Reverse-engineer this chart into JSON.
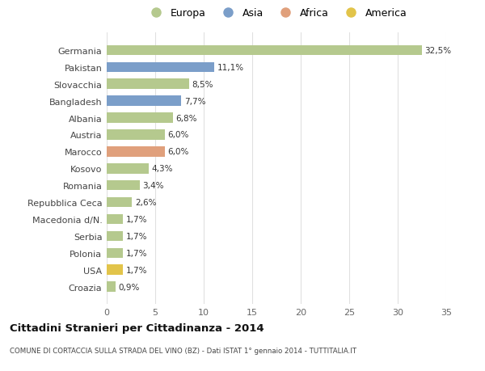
{
  "categories": [
    "Croazia",
    "USA",
    "Polonia",
    "Serbia",
    "Macedonia d/N.",
    "Repubblica Ceca",
    "Romania",
    "Kosovo",
    "Marocco",
    "Austria",
    "Albania",
    "Bangladesh",
    "Slovacchia",
    "Pakistan",
    "Germania"
  ],
  "values": [
    0.9,
    1.7,
    1.7,
    1.7,
    1.7,
    2.6,
    3.4,
    4.3,
    6.0,
    6.0,
    6.8,
    7.7,
    8.5,
    11.1,
    32.5
  ],
  "labels": [
    "0,9%",
    "1,7%",
    "1,7%",
    "1,7%",
    "1,7%",
    "2,6%",
    "3,4%",
    "4,3%",
    "6,0%",
    "6,0%",
    "6,8%",
    "7,7%",
    "8,5%",
    "11,1%",
    "32,5%"
  ],
  "colors": [
    "#b5c98e",
    "#e2c44a",
    "#b5c98e",
    "#b5c98e",
    "#b5c98e",
    "#b5c98e",
    "#b5c98e",
    "#b5c98e",
    "#e0a07c",
    "#b5c98e",
    "#b5c98e",
    "#7b9ec9",
    "#b5c98e",
    "#7b9ec9",
    "#b5c98e"
  ],
  "legend_labels": [
    "Europa",
    "Asia",
    "Africa",
    "America"
  ],
  "legend_colors": [
    "#b5c98e",
    "#7b9ec9",
    "#e0a07c",
    "#e2c44a"
  ],
  "title": "Cittadini Stranieri per Cittadinanza - 2014",
  "subtitle": "COMUNE DI CORTACCIA SULLA STRADA DEL VINO (BZ) - Dati ISTAT 1° gennaio 2014 - TUTTITALIA.IT",
  "xlim": [
    0,
    35
  ],
  "xticks": [
    0,
    5,
    10,
    15,
    20,
    25,
    30,
    35
  ],
  "background_color": "#ffffff",
  "plot_bg_color": "#ffffff",
  "grid_color": "#e0e0e0"
}
